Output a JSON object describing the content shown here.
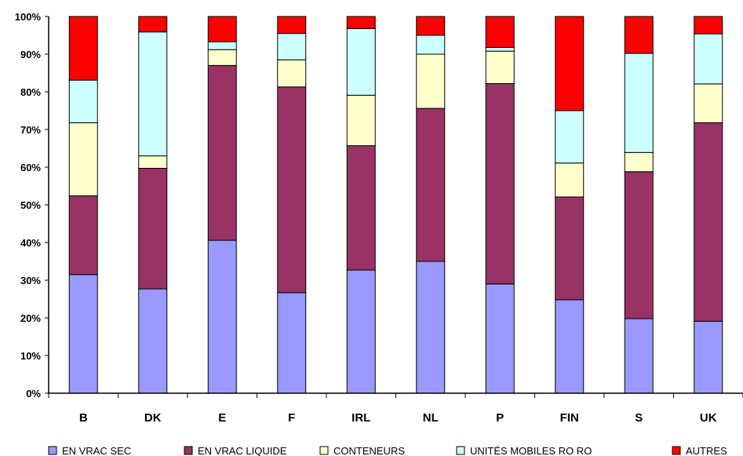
{
  "chart_data": {
    "type": "bar",
    "stacked": true,
    "percent": true,
    "categories": [
      "B",
      "DK",
      "E",
      "F",
      "IRL",
      "NL",
      "P",
      "FIN",
      "S",
      "UK"
    ],
    "series": [
      {
        "name": "EN VRAC SEC",
        "color": "#9999ff",
        "values": [
          31.5,
          27.7,
          40.6,
          26.7,
          32.7,
          35.0,
          29.0,
          24.8,
          19.8,
          19.1
        ]
      },
      {
        "name": "EN VRAC LIQUIDE",
        "color": "#993366",
        "values": [
          20.9,
          32.0,
          46.4,
          54.6,
          33.0,
          40.6,
          53.2,
          27.3,
          39.0,
          52.7
        ]
      },
      {
        "name": "CONTENEURS",
        "color": "#ffffcc",
        "values": [
          19.4,
          3.3,
          4.2,
          7.2,
          13.4,
          14.4,
          8.6,
          9.0,
          5.1,
          10.3
        ]
      },
      {
        "name": "UNITÉS MOBILES RO RO",
        "color": "#ccffff",
        "values": [
          11.3,
          32.9,
          2.1,
          7.0,
          17.7,
          5.0,
          1.0,
          13.9,
          26.3,
          13.3
        ]
      },
      {
        "name": "AUTRES",
        "color": "#ff0000",
        "values": [
          16.9,
          4.1,
          6.7,
          4.5,
          3.2,
          5.0,
          8.2,
          25.0,
          9.8,
          4.6
        ]
      }
    ],
    "yticks": [
      "0%",
      "10%",
      "20%",
      "30%",
      "40%",
      "50%",
      "60%",
      "70%",
      "80%",
      "90%",
      "100%"
    ],
    "ylim": [
      0,
      100
    ],
    "grid": false,
    "legend_position": "bottom"
  }
}
